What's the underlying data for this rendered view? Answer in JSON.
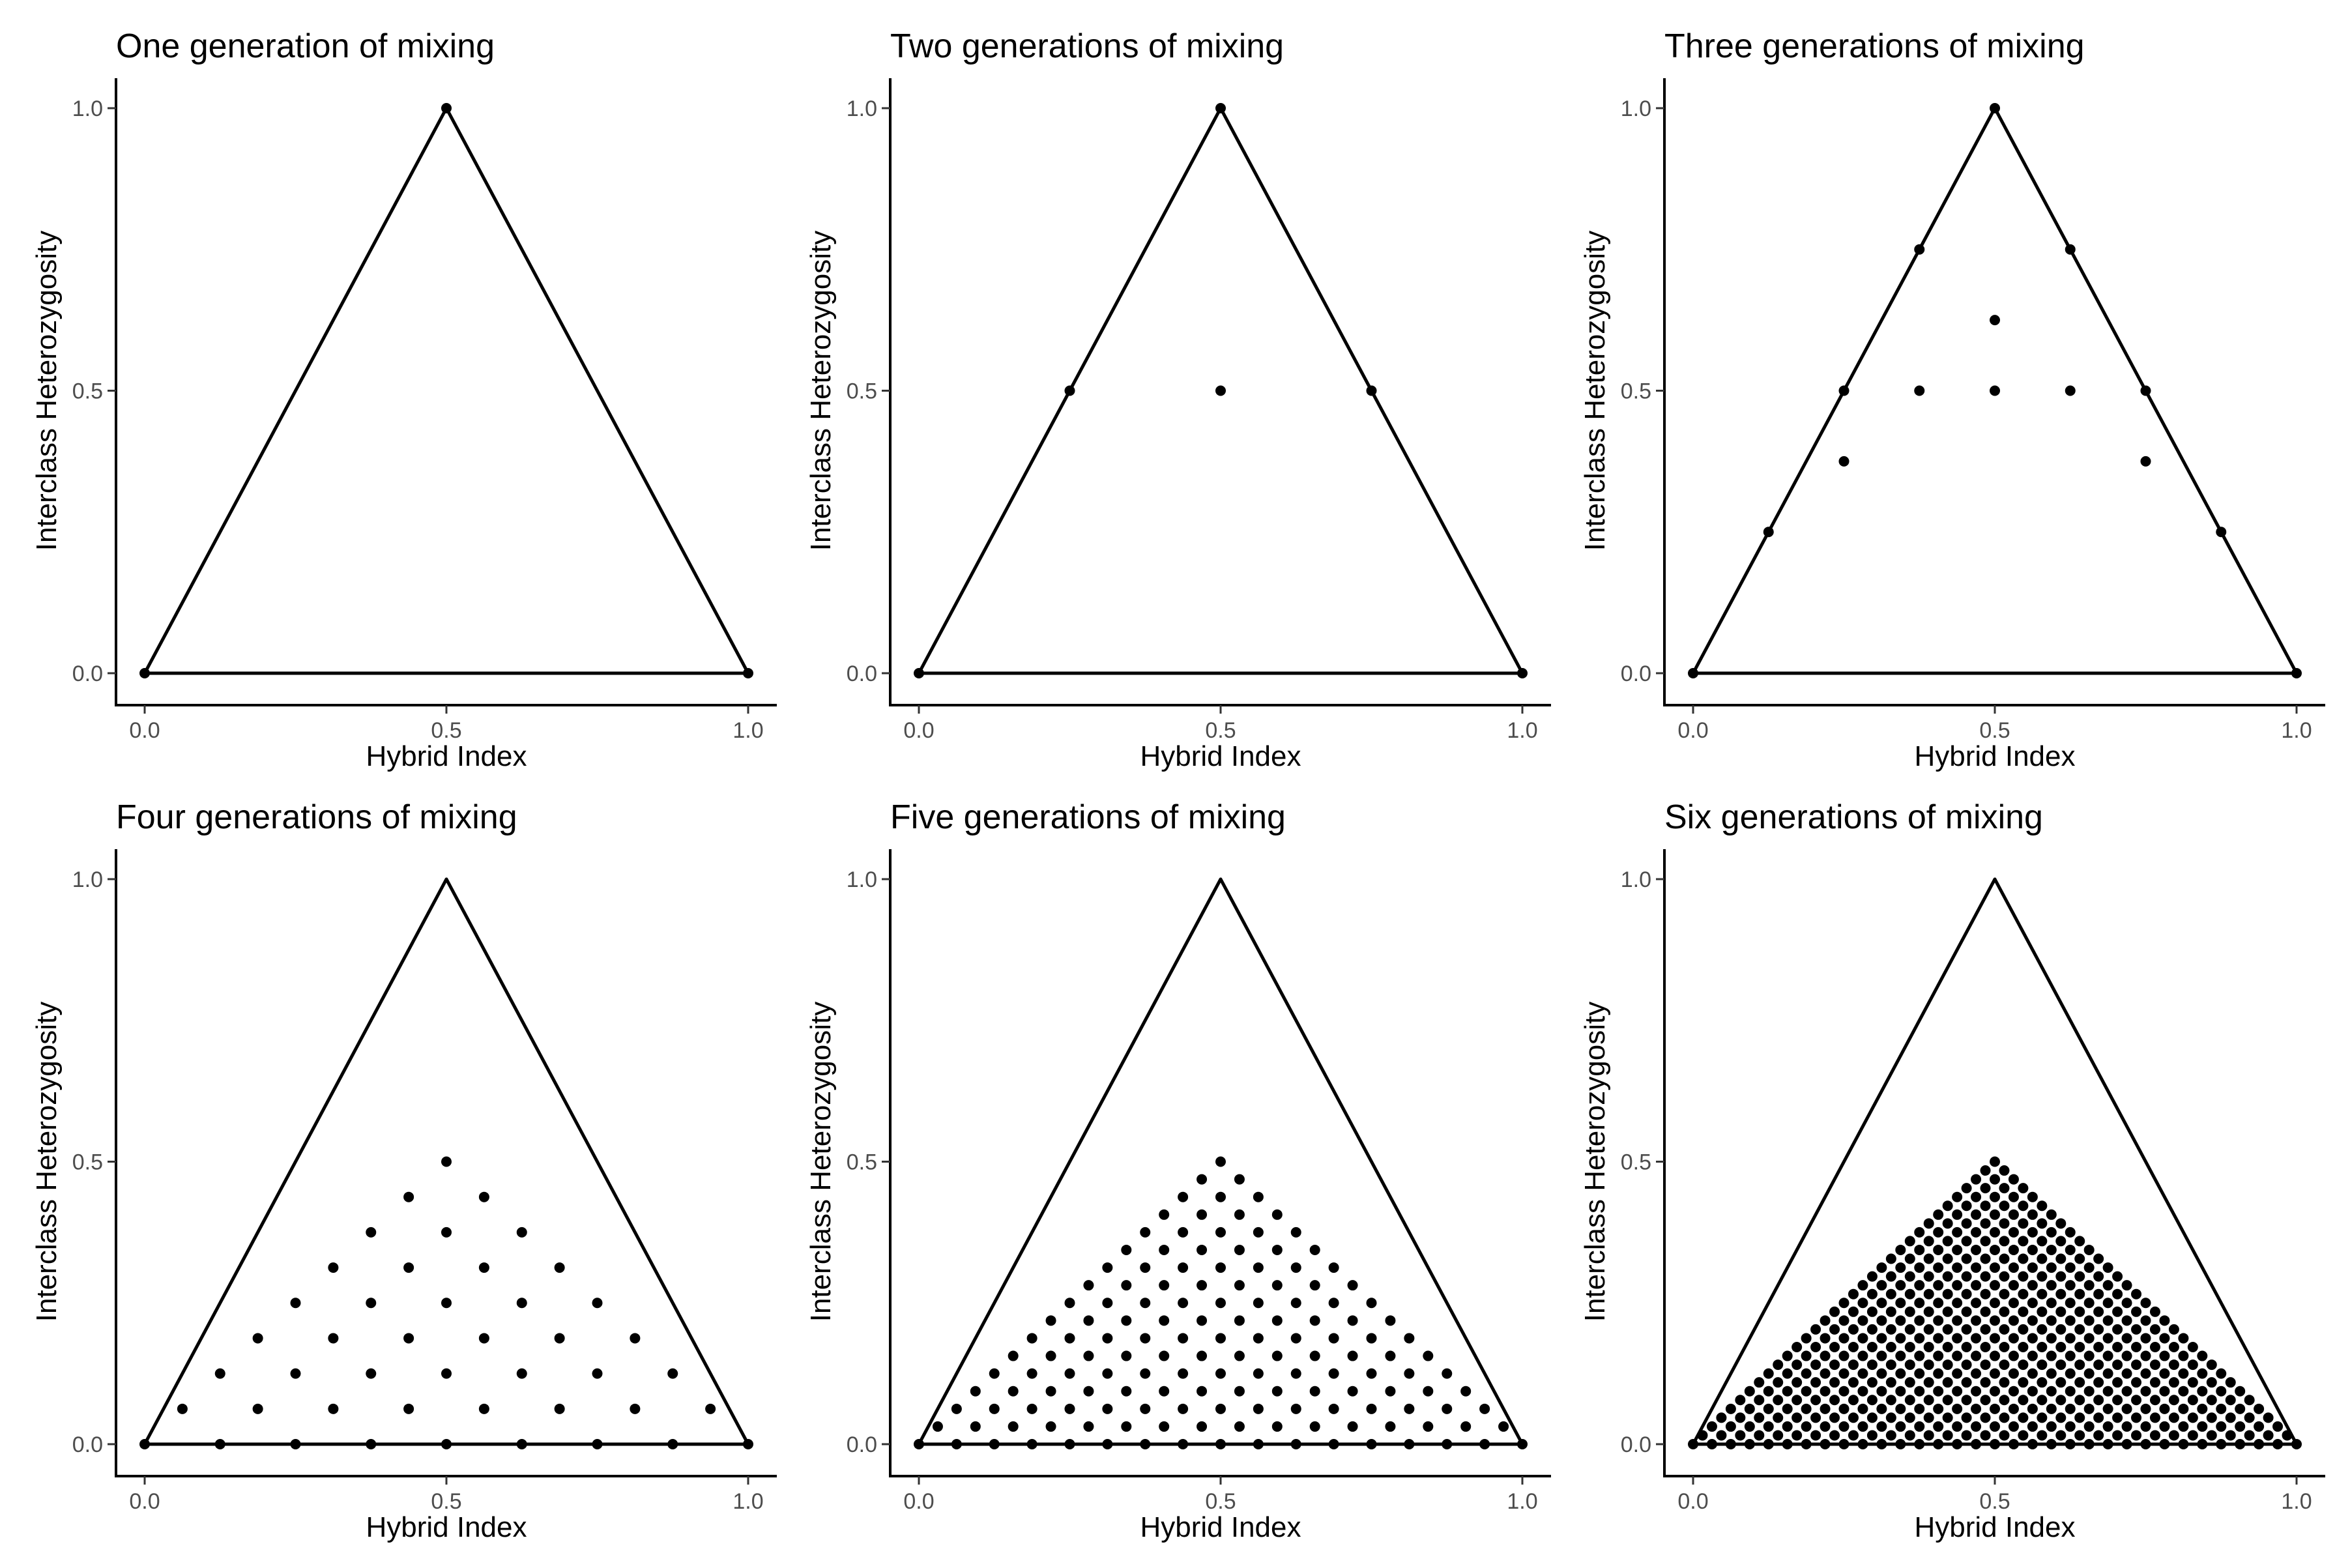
{
  "chart_data": [
    {
      "type": "scatter",
      "title": "One generation of mixing",
      "xlabel": "Hybrid Index",
      "ylabel": "Interclass Heterozygosity",
      "xlim": [
        0,
        1
      ],
      "ylim": [
        0,
        1
      ],
      "x_ticks": [
        "0.0",
        "0.5",
        "1.0"
      ],
      "y_ticks": [
        "0.0",
        "0.5",
        "1.0"
      ],
      "outline": [
        [
          0,
          0
        ],
        [
          0.5,
          1
        ],
        [
          1,
          0
        ]
      ],
      "grid": false,
      "generations": 1,
      "points": [
        [
          0,
          0
        ],
        [
          0.5,
          1
        ],
        [
          1,
          0
        ]
      ]
    },
    {
      "type": "scatter",
      "title": "Two generations of mixing",
      "xlabel": "Hybrid Index",
      "ylabel": "Interclass Heterozygosity",
      "xlim": [
        0,
        1
      ],
      "ylim": [
        0,
        1
      ],
      "x_ticks": [
        "0.0",
        "0.5",
        "1.0"
      ],
      "y_ticks": [
        "0.0",
        "0.5",
        "1.0"
      ],
      "outline": [
        [
          0,
          0
        ],
        [
          0.5,
          1
        ],
        [
          1,
          0
        ]
      ],
      "grid": false,
      "generations": 2,
      "points": [
        [
          0,
          0
        ],
        [
          0.25,
          0.5
        ],
        [
          0.5,
          0.5
        ],
        [
          0.5,
          1
        ],
        [
          0.75,
          0.5
        ],
        [
          1,
          0
        ]
      ]
    },
    {
      "type": "scatter",
      "title": "Three generations of mixing",
      "xlabel": "Hybrid Index",
      "ylabel": "Interclass Heterozygosity",
      "xlim": [
        0,
        1
      ],
      "ylim": [
        0,
        1
      ],
      "x_ticks": [
        "0.0",
        "0.5",
        "1.0"
      ],
      "y_ticks": [
        "0.0",
        "0.5",
        "1.0"
      ],
      "outline": [
        [
          0,
          0
        ],
        [
          0.5,
          1
        ],
        [
          1,
          0
        ]
      ],
      "grid": false,
      "generations": 3,
      "points": [
        [
          0,
          0
        ],
        [
          0.125,
          0.25
        ],
        [
          0.25,
          0.5
        ],
        [
          0.375,
          0.75
        ],
        [
          0.5,
          1
        ],
        [
          0.625,
          0.75
        ],
        [
          0.75,
          0.5
        ],
        [
          0.875,
          0.25
        ],
        [
          1,
          0
        ],
        [
          0.25,
          0.375
        ],
        [
          0.375,
          0.5
        ],
        [
          0.5,
          0.5
        ],
        [
          0.5,
          0.625
        ],
        [
          0.625,
          0.5
        ],
        [
          0.75,
          0.375
        ]
      ]
    },
    {
      "type": "scatter",
      "title": "Four generations of mixing",
      "xlabel": "Hybrid Index",
      "ylabel": "Interclass Heterozygosity",
      "xlim": [
        0,
        1
      ],
      "ylim": [
        0,
        1
      ],
      "x_ticks": [
        "0.0",
        "0.5",
        "1.0"
      ],
      "y_ticks": [
        "0.0",
        "0.5",
        "1.0"
      ],
      "outline": [
        [
          0,
          0
        ],
        [
          0.5,
          1
        ],
        [
          1,
          0
        ]
      ],
      "grid": false,
      "generations": 4,
      "points": []
    },
    {
      "type": "scatter",
      "title": "Five generations of mixing",
      "xlabel": "Hybrid Index",
      "ylabel": "Interclass Heterozygosity",
      "xlim": [
        0,
        1
      ],
      "ylim": [
        0,
        1
      ],
      "x_ticks": [
        "0.0",
        "0.5",
        "1.0"
      ],
      "y_ticks": [
        "0.0",
        "0.5",
        "1.0"
      ],
      "outline": [
        [
          0,
          0
        ],
        [
          0.5,
          1
        ],
        [
          1,
          0
        ]
      ],
      "grid": false,
      "generations": 5,
      "points": []
    },
    {
      "type": "scatter",
      "title": "Six generations of mixing",
      "xlabel": "Hybrid Index",
      "ylabel": "Interclass Heterozygosity",
      "xlim": [
        0,
        1
      ],
      "ylim": [
        0,
        1
      ],
      "x_ticks": [
        "0.0",
        "0.5",
        "1.0"
      ],
      "y_ticks": [
        "0.0",
        "0.5",
        "1.0"
      ],
      "outline": [
        [
          0,
          0
        ],
        [
          0.5,
          1
        ],
        [
          1,
          0
        ]
      ],
      "grid": false,
      "generations": 6,
      "points": []
    }
  ]
}
